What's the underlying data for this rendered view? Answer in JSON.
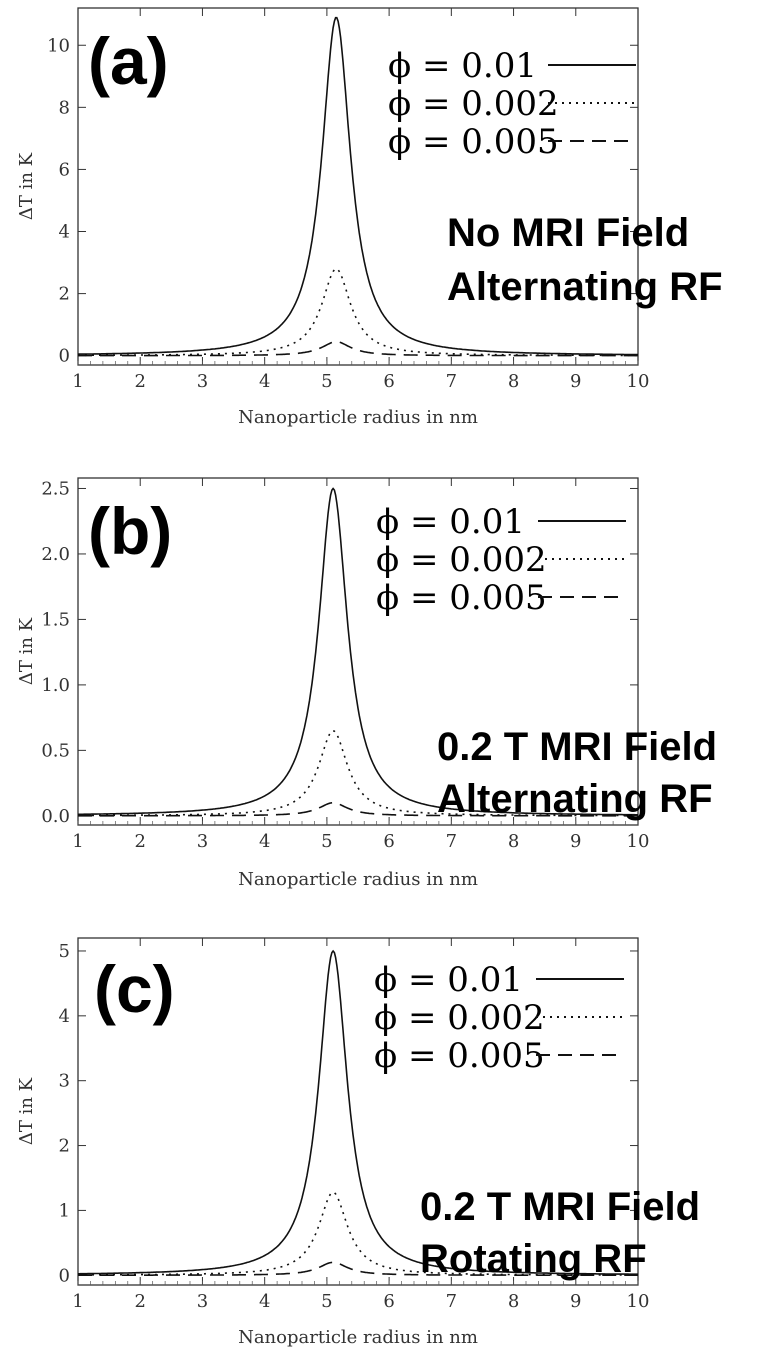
{
  "chart_data": [
    {
      "type": "line",
      "panel_label": "(a)",
      "annotation": [
        "No MRI Field",
        "Alternating RF"
      ],
      "xlabel": "Nanoparticle radius in nm",
      "ylabel": "ΔT in K",
      "xlim": [
        1,
        10
      ],
      "ylim": [
        -0.3,
        11.2
      ],
      "xticks": [
        1,
        2,
        3,
        4,
        5,
        6,
        7,
        8,
        9,
        10
      ],
      "yticks": [
        0,
        2,
        4,
        6,
        8,
        10
      ],
      "ytick_labels": [
        "0",
        "2",
        "4",
        "6",
        "8",
        "10"
      ],
      "legend_position": "top-right",
      "series": [
        {
          "name": "ϕ = 0.01",
          "style": "solid",
          "peak_x": 5.15,
          "peak_y": 10.9,
          "width": 0.28
        },
        {
          "name": "ϕ = 0.002",
          "style": "dotted",
          "peak_x": 5.15,
          "peak_y": 2.8,
          "width": 0.28
        },
        {
          "name": "ϕ = 0.005",
          "style": "dashed",
          "peak_x": 5.15,
          "peak_y": 0.45,
          "width": 0.28
        }
      ]
    },
    {
      "type": "line",
      "panel_label": "(b)",
      "annotation": [
        "0.2 T MRI Field",
        "Alternating RF"
      ],
      "xlabel": "Nanoparticle radius in nm",
      "ylabel": "ΔT in K",
      "xlim": [
        1,
        10
      ],
      "ylim": [
        -0.07,
        2.58
      ],
      "xticks": [
        1,
        2,
        3,
        4,
        5,
        6,
        7,
        8,
        9,
        10
      ],
      "yticks": [
        0,
        0.5,
        1.0,
        1.5,
        2.0,
        2.5
      ],
      "ytick_labels": [
        "0.0",
        "0.5",
        "1.0",
        "1.5",
        "2.0",
        "2.5"
      ],
      "legend_position": "top-right",
      "series": [
        {
          "name": "ϕ = 0.01",
          "style": "solid",
          "peak_x": 5.1,
          "peak_y": 2.5,
          "width": 0.28
        },
        {
          "name": "ϕ = 0.002",
          "style": "dotted",
          "peak_x": 5.1,
          "peak_y": 0.65,
          "width": 0.28
        },
        {
          "name": "ϕ = 0.005",
          "style": "dashed",
          "peak_x": 5.1,
          "peak_y": 0.1,
          "width": 0.28
        }
      ]
    },
    {
      "type": "line",
      "panel_label": "(c)",
      "annotation": [
        "0.2 T MRI Field",
        "Rotating RF"
      ],
      "xlabel": "Nanoparticle radius in nm",
      "ylabel": "ΔT in K",
      "xlim": [
        1,
        10
      ],
      "ylim": [
        -0.15,
        5.2
      ],
      "xticks": [
        1,
        2,
        3,
        4,
        5,
        6,
        7,
        8,
        9,
        10
      ],
      "yticks": [
        0,
        1,
        2,
        3,
        4,
        5
      ],
      "ytick_labels": [
        "0",
        "1",
        "2",
        "3",
        "4",
        "5"
      ],
      "legend_position": "top-right",
      "series": [
        {
          "name": "ϕ = 0.01",
          "style": "solid",
          "peak_x": 5.1,
          "peak_y": 5.0,
          "width": 0.28
        },
        {
          "name": "ϕ = 0.002",
          "style": "dotted",
          "peak_x": 5.1,
          "peak_y": 1.28,
          "width": 0.28
        },
        {
          "name": "ϕ = 0.005",
          "style": "dashed",
          "peak_x": 5.1,
          "peak_y": 0.2,
          "width": 0.28
        }
      ]
    }
  ]
}
